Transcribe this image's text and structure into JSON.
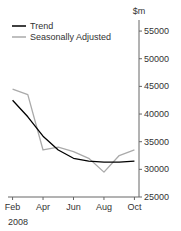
{
  "chart_data": {
    "type": "line",
    "ylabel": "$m",
    "xlabel": "2008",
    "categories": [
      "Feb",
      null,
      "Apr",
      null,
      "Jun",
      null,
      "Aug",
      null,
      "Oct"
    ],
    "series": [
      {
        "name": "Trend",
        "color": "#000000",
        "values": [
          42500,
          39500,
          36000,
          33500,
          32000,
          31500,
          31300,
          31300,
          31500
        ]
      },
      {
        "name": "Seasonally Adjusted",
        "color": "#aaaaaa",
        "values": [
          44500,
          43500,
          33500,
          34000,
          33200,
          32000,
          29500,
          32500,
          33500
        ]
      }
    ],
    "ylim": [
      25000,
      57000
    ],
    "yticks": [
      25000,
      30000,
      35000,
      40000,
      45000,
      50000,
      55000
    ],
    "legend": "upper left"
  }
}
